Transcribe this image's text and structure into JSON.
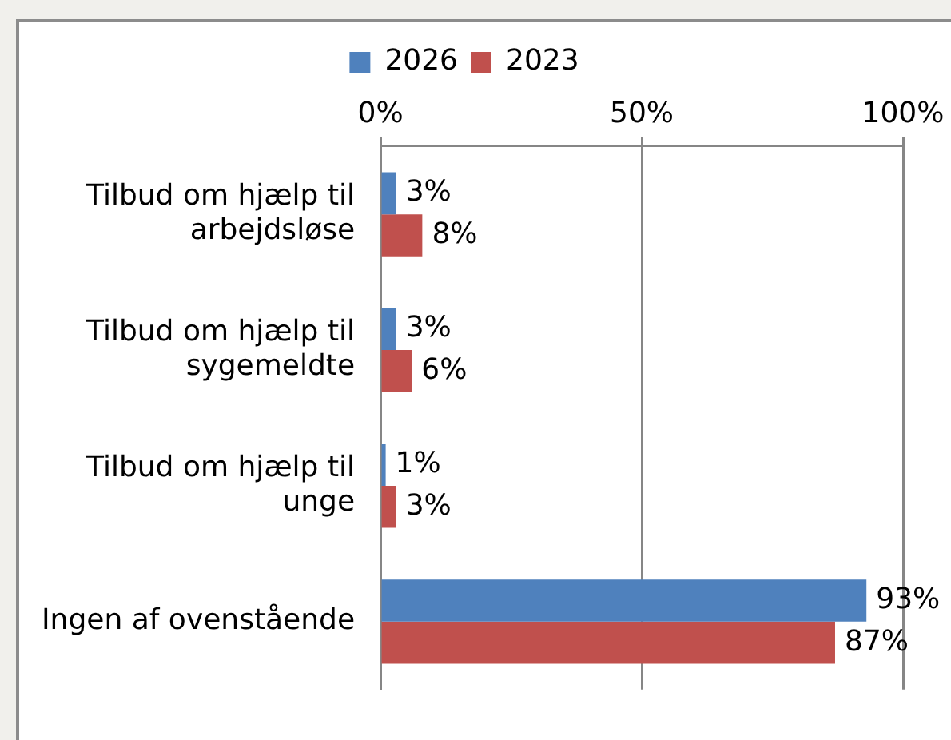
{
  "chart_data": {
    "type": "bar",
    "orientation": "horizontal",
    "categories": [
      "Tilbud om hjælp til arbejdsløse",
      "Tilbud om hjælp til sygemeldte",
      "Tilbud om hjælp til unge",
      "Ingen af ovenstående"
    ],
    "series": [
      {
        "name": "2026",
        "color": "#4f81bd",
        "values": [
          3,
          3,
          1,
          93
        ],
        "value_labels": [
          "3%",
          "3%",
          "1%",
          "93%"
        ]
      },
      {
        "name": "2023",
        "color": "#c0504d",
        "values": [
          8,
          6,
          3,
          87
        ],
        "value_labels": [
          "8%",
          "6%",
          "3%",
          "87%"
        ]
      }
    ],
    "xlim": [
      0,
      100
    ],
    "xticks": [
      {
        "value": 0,
        "label": "0%"
      },
      {
        "value": 50,
        "label": "50%"
      },
      {
        "value": 100,
        "label": "100%"
      }
    ],
    "grid": "x",
    "legend": "top"
  }
}
